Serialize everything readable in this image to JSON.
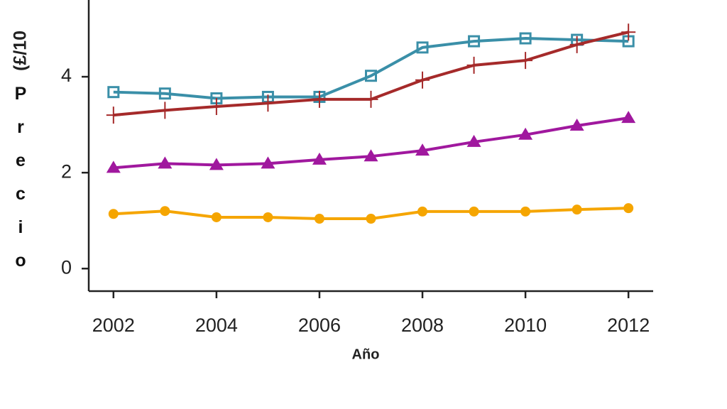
{
  "chart_data": {
    "type": "line",
    "xlabel": "Año",
    "ylabel": "Precio",
    "ylabel_unit": "(£/10",
    "x": [
      2002,
      2003,
      2004,
      2005,
      2006,
      2007,
      2008,
      2009,
      2010,
      2011,
      2012
    ],
    "xlim": [
      2001.52,
      2012.48
    ],
    "xticks": [
      2002,
      2004,
      2006,
      2008,
      2010,
      2012
    ],
    "ylim": [
      -0.47,
      5.6
    ],
    "yticks": [
      0,
      2,
      4
    ],
    "series": [
      {
        "color": "#3a8fa8",
        "marker": "square",
        "values": [
          3.68,
          3.65,
          3.55,
          3.58,
          3.58,
          4.02,
          4.61,
          4.74,
          4.8,
          4.77,
          4.74
        ]
      },
      {
        "color": "#a52a2a",
        "marker": "plus",
        "values": [
          3.2,
          3.3,
          3.38,
          3.45,
          3.53,
          3.53,
          3.93,
          4.24,
          4.34,
          4.67,
          4.93
        ]
      },
      {
        "color": "#a0189e",
        "marker": "triangle",
        "values": [
          2.1,
          2.19,
          2.16,
          2.19,
          2.27,
          2.34,
          2.46,
          2.64,
          2.79,
          2.98,
          3.14
        ]
      },
      {
        "color": "#f5a500",
        "marker": "circle",
        "values": [
          1.14,
          1.2,
          1.07,
          1.07,
          1.04,
          1.04,
          1.19,
          1.19,
          1.19,
          1.23,
          1.26
        ]
      }
    ]
  }
}
